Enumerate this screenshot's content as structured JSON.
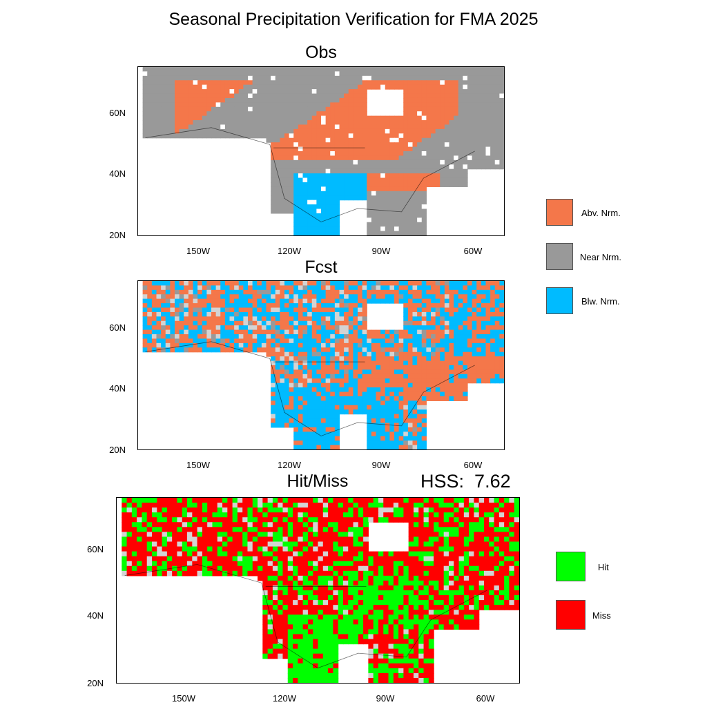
{
  "title": "Seasonal Precipitation Verification for FMA 2025",
  "panels": {
    "obs": {
      "title": "Obs"
    },
    "fcst": {
      "title": "Fcst"
    },
    "hitmiss": {
      "title": "Hit/Miss",
      "score_label": "HSS:",
      "score_value": "7.62"
    }
  },
  "axes": {
    "lat_labels": [
      "60N",
      "40N",
      "20N"
    ],
    "lon_labels": [
      "150W",
      "120W",
      "90W",
      "60W"
    ]
  },
  "legend_categories": [
    {
      "label": "Abv. Nrm.",
      "color": "#f4774a"
    },
    {
      "label": "Near Nrm.",
      "color": "#999999"
    },
    {
      "label": "Blw. Nrm.",
      "color": "#00bbff"
    }
  ],
  "legend_hitmiss": [
    {
      "label": "Hit",
      "color": "#00ff00"
    },
    {
      "label": "Miss",
      "color": "#ff0000"
    }
  ],
  "colors": {
    "above": "#f4774a",
    "near": "#999999",
    "below": "#00bbff",
    "hit": "#00ff00",
    "miss": "#ff0000",
    "nodata": "#d3d3d3",
    "background": "#ffffff"
  }
}
